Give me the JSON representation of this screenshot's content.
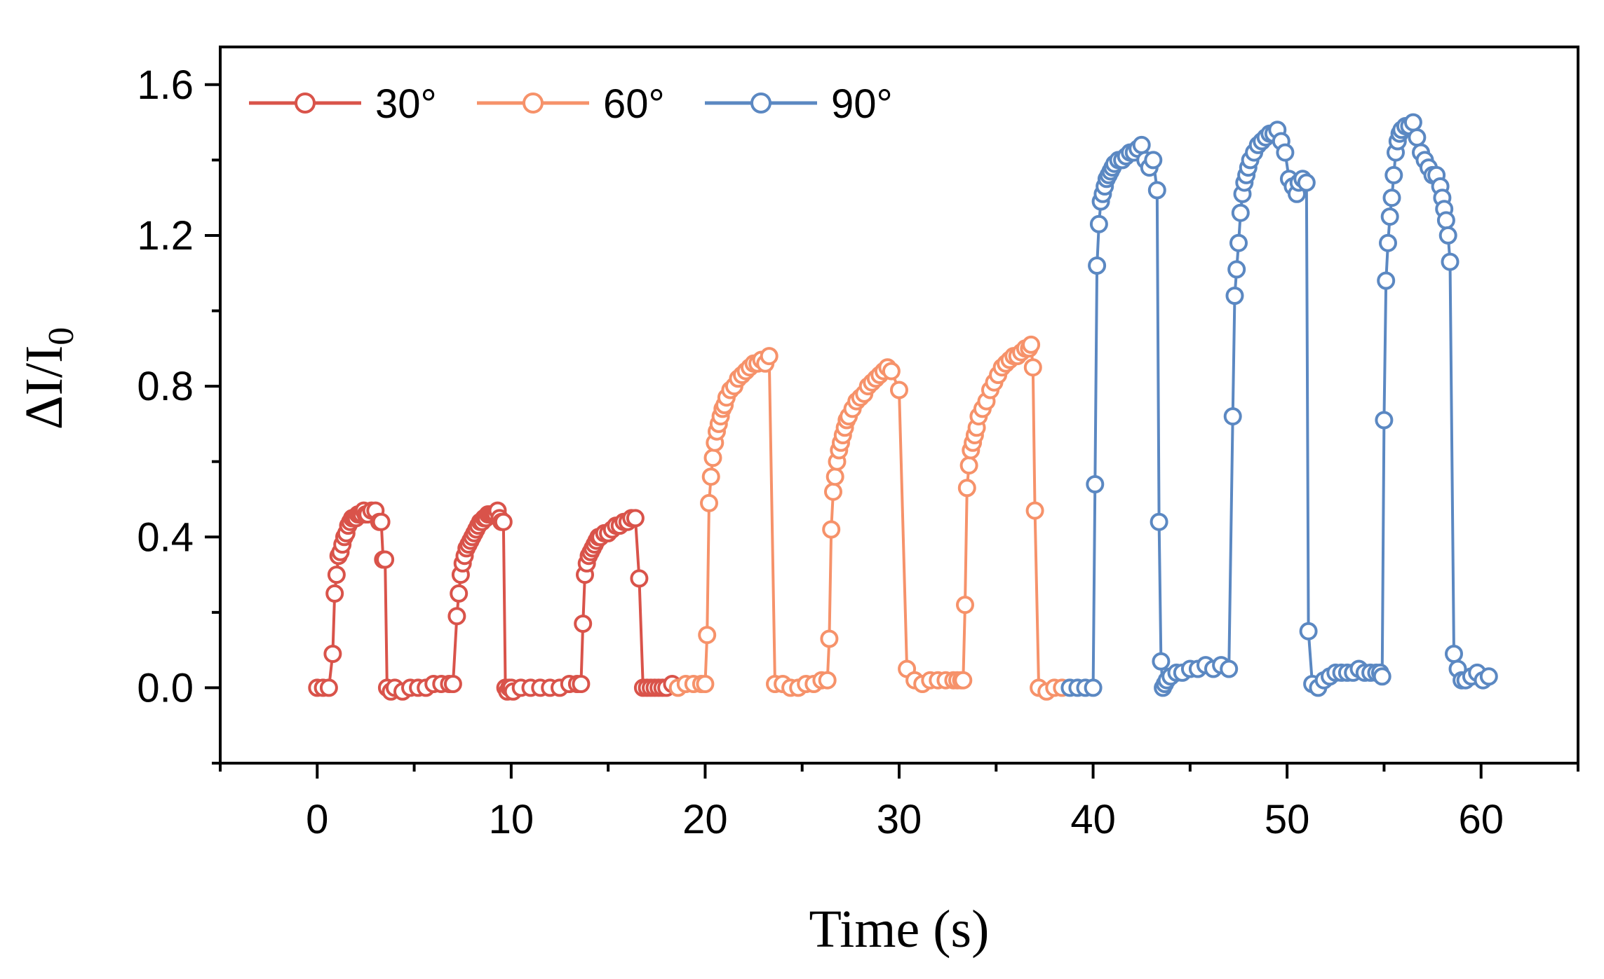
{
  "chart_data": {
    "type": "line",
    "xlabel": "Time (s)",
    "ylabel": "ΔI/I0",
    "ylabel_parts": {
      "main": "ΔI/I",
      "sub": "0"
    },
    "xlim": [
      -5,
      65
    ],
    "ylim": [
      -0.2,
      1.7
    ],
    "xticks": [
      0,
      10,
      20,
      30,
      40,
      50,
      60
    ],
    "xtick_labels": [
      "0",
      "10",
      "20",
      "30",
      "40",
      "50",
      "60"
    ],
    "yticks": [
      0.0,
      0.4,
      0.8,
      1.2,
      1.6
    ],
    "ytick_labels": [
      "0.0",
      "0.4",
      "0.8",
      "1.2",
      "1.6"
    ],
    "legend_position": "top-left",
    "marker": "open-circle",
    "series": [
      {
        "name": "30°",
        "color": "#D9534A",
        "x": [
          0.0,
          0.3,
          0.6,
          0.8,
          0.9,
          1.0,
          1.1,
          1.2,
          1.3,
          1.4,
          1.5,
          1.6,
          1.7,
          1.8,
          1.9,
          2.0,
          2.1,
          2.2,
          2.3,
          2.4,
          2.5,
          2.6,
          2.8,
          3.0,
          3.2,
          3.3,
          3.4,
          3.5,
          3.6,
          3.8,
          4.0,
          4.4,
          4.8,
          5.2,
          5.6,
          6.0,
          6.4,
          6.8,
          7.0,
          7.2,
          7.3,
          7.4,
          7.5,
          7.6,
          7.7,
          7.8,
          7.9,
          8.0,
          8.1,
          8.2,
          8.3,
          8.4,
          8.5,
          8.6,
          8.7,
          8.8,
          8.9,
          9.0,
          9.1,
          9.2,
          9.3,
          9.4,
          9.5,
          9.6,
          9.7,
          9.8,
          9.9,
          10.0,
          10.1,
          10.5,
          11.0,
          11.5,
          12.0,
          12.5,
          13.0,
          13.4,
          13.6,
          13.7,
          13.8,
          13.9,
          14.0,
          14.1,
          14.2,
          14.3,
          14.4,
          14.5,
          14.6,
          14.8,
          15.0,
          15.2,
          15.4,
          15.6,
          15.8,
          16.0,
          16.2,
          16.4,
          16.6,
          16.8,
          17.0,
          17.2,
          17.4,
          17.6,
          17.8,
          18.0,
          18.3
        ],
        "y": [
          0.0,
          0.0,
          0.0,
          0.09,
          0.25,
          0.3,
          0.35,
          0.36,
          0.38,
          0.4,
          0.41,
          0.43,
          0.44,
          0.45,
          0.45,
          0.45,
          0.46,
          0.46,
          0.46,
          0.47,
          0.46,
          0.46,
          0.47,
          0.47,
          0.44,
          0.44,
          0.34,
          0.34,
          0.0,
          -0.01,
          0.0,
          -0.01,
          0.0,
          0.0,
          0.0,
          0.01,
          0.01,
          0.01,
          0.01,
          0.19,
          0.25,
          0.3,
          0.33,
          0.35,
          0.37,
          0.38,
          0.39,
          0.4,
          0.41,
          0.42,
          0.43,
          0.44,
          0.44,
          0.45,
          0.45,
          0.46,
          0.46,
          0.46,
          0.46,
          0.46,
          0.47,
          0.45,
          0.44,
          0.44,
          0.0,
          -0.01,
          0.0,
          0.0,
          -0.01,
          0.0,
          0.0,
          0.0,
          0.0,
          0.0,
          0.01,
          0.01,
          0.01,
          0.17,
          0.3,
          0.33,
          0.35,
          0.36,
          0.37,
          0.38,
          0.39,
          0.4,
          0.4,
          0.41,
          0.41,
          0.42,
          0.43,
          0.43,
          0.44,
          0.44,
          0.45,
          0.45,
          0.29,
          0.0,
          0.0,
          0.0,
          0.0,
          0.0,
          0.0,
          0.0,
          0.01
        ]
      },
      {
        "name": "60°",
        "color": "#F6926A",
        "x": [
          18.6,
          19.0,
          19.4,
          19.8,
          20.0,
          20.1,
          20.2,
          20.3,
          20.4,
          20.5,
          20.6,
          20.7,
          20.8,
          20.9,
          21.0,
          21.1,
          21.3,
          21.5,
          21.7,
          21.9,
          22.1,
          22.3,
          22.5,
          22.7,
          22.9,
          23.1,
          23.3,
          23.6,
          24.0,
          24.4,
          24.8,
          25.2,
          25.6,
          26.0,
          26.3,
          26.4,
          26.5,
          26.6,
          26.7,
          26.8,
          26.9,
          27.0,
          27.1,
          27.2,
          27.3,
          27.4,
          27.6,
          27.8,
          28.0,
          28.2,
          28.4,
          28.6,
          28.8,
          29.0,
          29.2,
          29.4,
          29.6,
          30.0,
          30.4,
          30.8,
          31.2,
          31.6,
          32.0,
          32.4,
          32.8,
          33.0,
          33.2,
          33.3,
          33.4,
          33.5,
          33.6,
          33.7,
          33.8,
          33.9,
          34.0,
          34.1,
          34.3,
          34.5,
          34.7,
          34.9,
          35.1,
          35.3,
          35.5,
          35.7,
          35.9,
          36.1,
          36.3,
          36.5,
          36.7,
          36.8,
          36.9,
          37.0,
          37.2,
          37.6,
          38.0,
          38.4
        ],
        "y": [
          0.0,
          0.01,
          0.01,
          0.01,
          0.01,
          0.14,
          0.49,
          0.56,
          0.61,
          0.65,
          0.68,
          0.7,
          0.72,
          0.74,
          0.75,
          0.77,
          0.79,
          0.8,
          0.82,
          0.83,
          0.84,
          0.85,
          0.86,
          0.86,
          0.87,
          0.86,
          0.88,
          0.01,
          0.01,
          0.0,
          0.0,
          0.01,
          0.01,
          0.02,
          0.02,
          0.13,
          0.42,
          0.52,
          0.56,
          0.6,
          0.63,
          0.65,
          0.67,
          0.69,
          0.71,
          0.72,
          0.74,
          0.76,
          0.77,
          0.78,
          0.8,
          0.81,
          0.82,
          0.83,
          0.84,
          0.85,
          0.84,
          0.79,
          0.05,
          0.02,
          0.01,
          0.02,
          0.02,
          0.02,
          0.02,
          0.02,
          0.02,
          0.02,
          0.22,
          0.53,
          0.59,
          0.63,
          0.65,
          0.67,
          0.69,
          0.72,
          0.74,
          0.76,
          0.79,
          0.81,
          0.83,
          0.85,
          0.86,
          0.87,
          0.88,
          0.88,
          0.89,
          0.9,
          0.9,
          0.91,
          0.85,
          0.47,
          0.0,
          -0.01,
          0.0,
          0.0
        ]
      },
      {
        "name": "90°",
        "color": "#5B88C2",
        "x": [
          38.8,
          39.2,
          39.6,
          40.0,
          40.1,
          40.2,
          40.3,
          40.4,
          40.5,
          40.6,
          40.7,
          40.8,
          40.9,
          41.0,
          41.1,
          41.3,
          41.5,
          41.7,
          41.9,
          42.1,
          42.3,
          42.5,
          42.7,
          42.9,
          43.1,
          43.3,
          43.4,
          43.5,
          43.6,
          43.7,
          43.8,
          44.0,
          44.3,
          44.6,
          45.0,
          45.4,
          45.8,
          46.2,
          46.6,
          47.0,
          47.2,
          47.3,
          47.4,
          47.5,
          47.6,
          47.7,
          47.8,
          47.9,
          48.0,
          48.1,
          48.3,
          48.5,
          48.7,
          48.9,
          49.1,
          49.3,
          49.5,
          49.7,
          49.9,
          50.1,
          50.3,
          50.5,
          50.6,
          50.8,
          51.0,
          51.1,
          51.3,
          51.6,
          51.9,
          52.2,
          52.5,
          52.8,
          53.1,
          53.4,
          53.7,
          54.0,
          54.3,
          54.6,
          54.8,
          54.9,
          55.0,
          55.1,
          55.2,
          55.3,
          55.4,
          55.5,
          55.6,
          55.7,
          55.8,
          55.9,
          56.1,
          56.3,
          56.5,
          56.7,
          56.9,
          57.1,
          57.3,
          57.5,
          57.7,
          57.9,
          58.0,
          58.1,
          58.2,
          58.3,
          58.4,
          58.6,
          58.8,
          59.0,
          59.2,
          59.5,
          59.8,
          60.1,
          60.4
        ],
        "y": [
          0.0,
          0.0,
          0.0,
          0.0,
          0.54,
          1.12,
          1.23,
          1.29,
          1.31,
          1.33,
          1.35,
          1.36,
          1.37,
          1.38,
          1.39,
          1.4,
          1.4,
          1.41,
          1.42,
          1.42,
          1.43,
          1.44,
          1.4,
          1.38,
          1.4,
          1.32,
          0.44,
          0.07,
          0.0,
          0.01,
          0.02,
          0.03,
          0.04,
          0.04,
          0.05,
          0.05,
          0.06,
          0.05,
          0.06,
          0.05,
          0.72,
          1.04,
          1.11,
          1.18,
          1.26,
          1.31,
          1.34,
          1.36,
          1.38,
          1.4,
          1.42,
          1.44,
          1.45,
          1.46,
          1.47,
          1.47,
          1.48,
          1.45,
          1.42,
          1.35,
          1.33,
          1.31,
          1.34,
          1.35,
          1.34,
          0.15,
          0.01,
          0.0,
          0.02,
          0.03,
          0.04,
          0.04,
          0.04,
          0.04,
          0.05,
          0.04,
          0.04,
          0.04,
          0.04,
          0.03,
          0.71,
          1.08,
          1.18,
          1.25,
          1.3,
          1.36,
          1.42,
          1.45,
          1.47,
          1.48,
          1.49,
          1.49,
          1.5,
          1.46,
          1.42,
          1.4,
          1.38,
          1.36,
          1.36,
          1.33,
          1.3,
          1.27,
          1.24,
          1.2,
          1.13,
          0.09,
          0.05,
          0.02,
          0.02,
          0.03,
          0.04,
          0.02,
          0.03
        ]
      }
    ]
  }
}
